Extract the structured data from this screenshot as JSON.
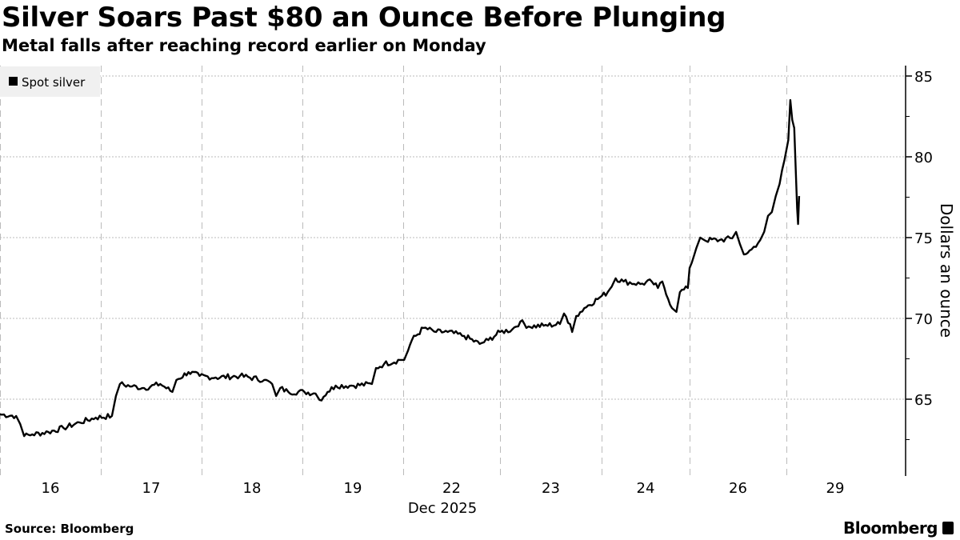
{
  "header": {
    "title": "Silver Soars Past $80 an Ounce Before Plunging",
    "subtitle": "Metal falls after reaching record earlier on Monday"
  },
  "footer": {
    "source": "Source: Bloomberg",
    "logo": "Bloomberg"
  },
  "chart_data": {
    "type": "line",
    "title": "Silver Soars Past $80 an Ounce Before Plunging",
    "subtitle": "Metal falls after reaching record earlier on Monday",
    "xlabel": "Dec 2025",
    "ylabel": "Dollars an ounce",
    "x_unit": "trading-day index (0 = start of Dec 16 session)",
    "categories": [
      "16",
      "17",
      "18",
      "19",
      "22",
      "23",
      "24",
      "26",
      "29"
    ],
    "ylim": [
      60.5,
      86
    ],
    "yticks": [
      65,
      70,
      75,
      80,
      85
    ],
    "grid": true,
    "legend": {
      "placement": "top-left",
      "entries": [
        "Spot silver"
      ]
    },
    "color": "#000000",
    "series": [
      {
        "name": "Spot silver",
        "points": [
          [
            0,
            64.06
          ],
          [
            0.16,
            63.96
          ],
          [
            0.2,
            63.47
          ],
          [
            0.24,
            62.72
          ],
          [
            0.32,
            62.82
          ],
          [
            0.48,
            62.97
          ],
          [
            0.63,
            63.22
          ],
          [
            0.79,
            63.56
          ],
          [
            0.95,
            63.86
          ],
          [
            1.11,
            63.96
          ],
          [
            1.15,
            65.2
          ],
          [
            1.19,
            65.94
          ],
          [
            1.31,
            65.79
          ],
          [
            1.43,
            65.69
          ],
          [
            1.59,
            65.94
          ],
          [
            1.71,
            65.45
          ],
          [
            1.75,
            66.19
          ],
          [
            1.87,
            66.68
          ],
          [
            1.98,
            66.44
          ],
          [
            2.14,
            66.34
          ],
          [
            2.38,
            66.44
          ],
          [
            2.62,
            66.19
          ],
          [
            2.7,
            65.94
          ],
          [
            2.74,
            65.2
          ],
          [
            2.78,
            65.69
          ],
          [
            2.86,
            65.45
          ],
          [
            3.02,
            65.45
          ],
          [
            3.13,
            65.35
          ],
          [
            3.17,
            64.95
          ],
          [
            3.25,
            65.45
          ],
          [
            3.33,
            65.84
          ],
          [
            3.49,
            65.84
          ],
          [
            3.69,
            65.94
          ],
          [
            3.73,
            66.93
          ],
          [
            3.81,
            67.18
          ],
          [
            3.97,
            67.43
          ],
          [
            4.01,
            67.43
          ],
          [
            4.09,
            68.66
          ],
          [
            4.21,
            69.41
          ],
          [
            4.34,
            69.16
          ],
          [
            4.46,
            69.16
          ],
          [
            4.63,
            68.91
          ],
          [
            4.79,
            68.42
          ],
          [
            4.88,
            68.66
          ],
          [
            5.0,
            69.16
          ],
          [
            5.12,
            69.31
          ],
          [
            5.2,
            69.8
          ],
          [
            5.28,
            69.5
          ],
          [
            5.43,
            69.55
          ],
          [
            5.59,
            69.65
          ],
          [
            5.63,
            70.3
          ],
          [
            5.69,
            69.65
          ],
          [
            5.71,
            69.16
          ],
          [
            5.75,
            70.15
          ],
          [
            5.83,
            70.64
          ],
          [
            5.98,
            71.29
          ],
          [
            6.07,
            71.63
          ],
          [
            6.16,
            72.48
          ],
          [
            6.25,
            72.28
          ],
          [
            6.44,
            72.13
          ],
          [
            6.57,
            72.28
          ],
          [
            6.64,
            71.88
          ],
          [
            6.69,
            72.28
          ],
          [
            6.8,
            70.64
          ],
          [
            6.85,
            70.4
          ],
          [
            6.89,
            71.63
          ],
          [
            6.98,
            71.88
          ],
          [
            7.0,
            73.12
          ],
          [
            7.07,
            74.36
          ],
          [
            7.11,
            75.0
          ],
          [
            7.15,
            74.85
          ],
          [
            7.31,
            74.85
          ],
          [
            7.44,
            74.95
          ],
          [
            7.48,
            75.35
          ],
          [
            7.52,
            74.6
          ],
          [
            7.56,
            73.96
          ],
          [
            7.64,
            74.26
          ],
          [
            7.73,
            74.85
          ],
          [
            7.77,
            75.35
          ],
          [
            7.81,
            76.34
          ],
          [
            7.85,
            76.58
          ],
          [
            7.89,
            77.57
          ],
          [
            7.93,
            78.32
          ],
          [
            7.98,
            79.8
          ],
          [
            8.02,
            81.04
          ],
          [
            8.04,
            83.51
          ],
          [
            8.06,
            82.28
          ],
          [
            8.08,
            81.78
          ],
          [
            8.11,
            76.83
          ],
          [
            8.12,
            75.84
          ],
          [
            8.13,
            77.57
          ]
        ]
      }
    ]
  }
}
